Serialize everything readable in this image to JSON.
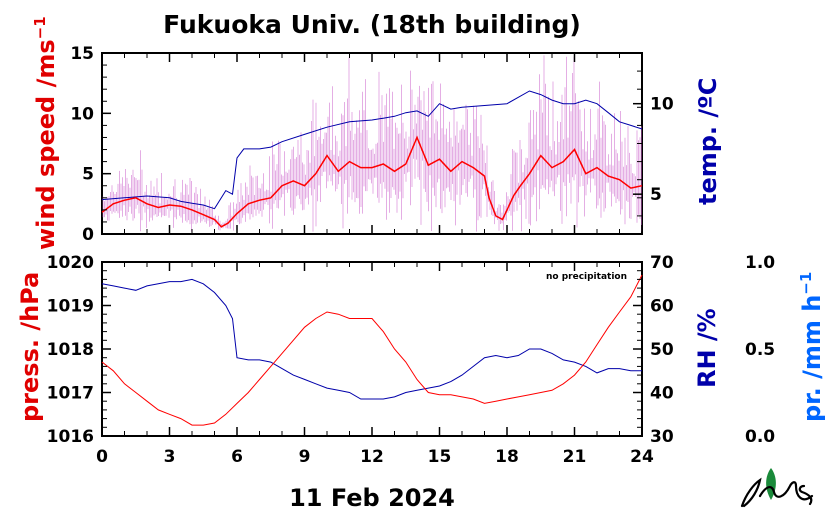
{
  "title": "Fukuoka Univ. (18th building)",
  "date_label": "11 Feb 2024",
  "note": "no precipitation",
  "colors": {
    "wind": "#ff0000",
    "wind_gust": "#cc66cc",
    "temp": "#0000aa",
    "press": "#ff0000",
    "rh": "#0000aa",
    "precip": "#0066ff",
    "axis": "#000000"
  },
  "chart_data": [
    {
      "type": "line",
      "panel": "top",
      "xlim": [
        0,
        24
      ],
      "xticks": [
        0,
        3,
        6,
        9,
        12,
        15,
        18,
        21,
        24
      ],
      "left_axis": {
        "label": "wind speed /ms",
        "superscript": "−1",
        "ylim": [
          0,
          15
        ],
        "ticks": [
          0,
          5,
          10,
          15
        ]
      },
      "right_axis": {
        "label": "temp. /ºC",
        "ylim": [
          2.8,
          12.8
        ],
        "ticks": [
          5,
          10
        ]
      },
      "series": [
        {
          "axis": "left",
          "color_key": "wind",
          "x": [
            0,
            0.5,
            1,
            1.5,
            2,
            2.5,
            3,
            3.5,
            4,
            4.5,
            5,
            5.3,
            5.6,
            6,
            6.5,
            7,
            7.5,
            8,
            8.5,
            9,
            9.5,
            10,
            10.5,
            11,
            11.5,
            12,
            12.5,
            13,
            13.5,
            14,
            14.5,
            15,
            15.5,
            16,
            16.5,
            17,
            17.2,
            17.5,
            17.8,
            18,
            18.3,
            18.6,
            19,
            19.5,
            20,
            20.5,
            21,
            21.5,
            22,
            22.5,
            23,
            23.5,
            24
          ],
          "y": [
            1.8,
            2.5,
            2.8,
            3.0,
            2.5,
            2.2,
            2.4,
            2.3,
            2.0,
            1.6,
            1.2,
            0.6,
            0.9,
            1.7,
            2.5,
            2.8,
            3.0,
            4.0,
            4.4,
            4.0,
            5.0,
            6.5,
            5.2,
            6.0,
            5.5,
            5.5,
            5.8,
            5.2,
            5.8,
            8.0,
            5.7,
            6.2,
            5.2,
            6.0,
            5.5,
            4.8,
            3.0,
            1.5,
            1.2,
            2.0,
            3.2,
            4.0,
            5.0,
            6.5,
            5.5,
            6.0,
            7.0,
            5.0,
            5.5,
            4.8,
            4.5,
            3.8,
            4.0
          ]
        },
        {
          "axis": "right",
          "color_key": "temp",
          "x": [
            0,
            1,
            2,
            3,
            3.5,
            4,
            4.5,
            5,
            5.5,
            5.8,
            6,
            6.3,
            7,
            7.5,
            8,
            9,
            10,
            11,
            12,
            12.5,
            13,
            13.5,
            14,
            14.5,
            15,
            15.5,
            16,
            17,
            18,
            19,
            19.5,
            20,
            20.5,
            21,
            21.5,
            22,
            22.5,
            23,
            23.5,
            24
          ],
          "y": [
            4.7,
            4.8,
            4.9,
            4.8,
            4.6,
            4.5,
            4.4,
            4.2,
            5.2,
            5.0,
            7.0,
            7.5,
            7.5,
            7.6,
            7.9,
            8.3,
            8.7,
            9.0,
            9.1,
            9.2,
            9.3,
            9.5,
            9.6,
            9.3,
            10.0,
            9.7,
            9.8,
            9.9,
            10.0,
            10.7,
            10.5,
            10.2,
            10.0,
            10.0,
            10.2,
            10.0,
            9.5,
            9.0,
            8.8,
            8.6
          ]
        }
      ]
    },
    {
      "type": "line",
      "panel": "bottom",
      "xlim": [
        0,
        24
      ],
      "xticks": [
        0,
        3,
        6,
        9,
        12,
        15,
        18,
        21,
        24
      ],
      "left_axis": {
        "label": "press. /hPa",
        "ylim": [
          1016,
          1020
        ],
        "ticks": [
          1016,
          1017,
          1018,
          1019,
          1020
        ]
      },
      "right_axis": {
        "label": "RH /%",
        "ylim": [
          30,
          70
        ],
        "ticks": [
          30,
          40,
          50,
          60,
          70
        ]
      },
      "outer_axis": {
        "label": "pr. /mm h",
        "superscript": "−1",
        "ylim": [
          0.0,
          1.0
        ],
        "ticks": [
          "0.0",
          "0.5",
          "1.0"
        ]
      },
      "series": [
        {
          "axis": "left",
          "color_key": "press",
          "x": [
            0,
            0.5,
            1,
            1.5,
            2,
            2.5,
            3,
            3.5,
            4,
            4.5,
            5,
            5.5,
            6,
            6.5,
            7,
            7.5,
            8,
            8.5,
            9,
            9.5,
            10,
            10.5,
            11,
            11.5,
            12,
            12.5,
            13,
            13.5,
            14,
            14.5,
            15,
            15.5,
            16,
            16.5,
            17,
            17.5,
            18,
            18.5,
            19,
            19.5,
            20,
            20.5,
            21,
            21.5,
            22,
            22.5,
            23,
            23.5,
            24
          ],
          "y": [
            1017.7,
            1017.5,
            1017.2,
            1017.0,
            1016.8,
            1016.6,
            1016.5,
            1016.4,
            1016.25,
            1016.25,
            1016.3,
            1016.5,
            1016.75,
            1017.0,
            1017.3,
            1017.6,
            1017.9,
            1018.2,
            1018.5,
            1018.7,
            1018.85,
            1018.8,
            1018.7,
            1018.7,
            1018.7,
            1018.4,
            1018.0,
            1017.7,
            1017.3,
            1017.0,
            1016.95,
            1016.95,
            1016.9,
            1016.85,
            1016.75,
            1016.8,
            1016.85,
            1016.9,
            1016.95,
            1017.0,
            1017.05,
            1017.2,
            1017.4,
            1017.7,
            1018.1,
            1018.5,
            1018.85,
            1019.2,
            1019.7
          ]
        },
        {
          "axis": "right",
          "color_key": "rh",
          "x": [
            0,
            0.5,
            1,
            1.5,
            2,
            2.5,
            3,
            3.5,
            4,
            4.5,
            5,
            5.5,
            5.8,
            6,
            6.5,
            7,
            7.5,
            8,
            8.5,
            9,
            9.5,
            10,
            10.5,
            11,
            11.5,
            12,
            12.5,
            13,
            13.5,
            14,
            14.5,
            15,
            15.5,
            16,
            16.5,
            17,
            17.5,
            18,
            18.5,
            19,
            19.5,
            20,
            20.5,
            21,
            21.5,
            22,
            22.5,
            23,
            23.5,
            24
          ],
          "y": [
            65,
            64.5,
            64,
            63.5,
            64.5,
            65,
            65.5,
            65.5,
            66,
            65,
            63,
            60,
            57,
            48,
            47.5,
            47.5,
            47,
            45.5,
            44,
            43,
            42,
            41,
            40.5,
            40,
            38.5,
            38.5,
            38.5,
            39,
            40,
            40.5,
            41,
            41.5,
            42.5,
            44,
            46,
            48,
            48.5,
            48,
            48.5,
            50,
            50,
            49,
            47.5,
            47,
            46,
            44.5,
            45.5,
            45.5,
            45,
            45
          ]
        }
      ]
    }
  ]
}
